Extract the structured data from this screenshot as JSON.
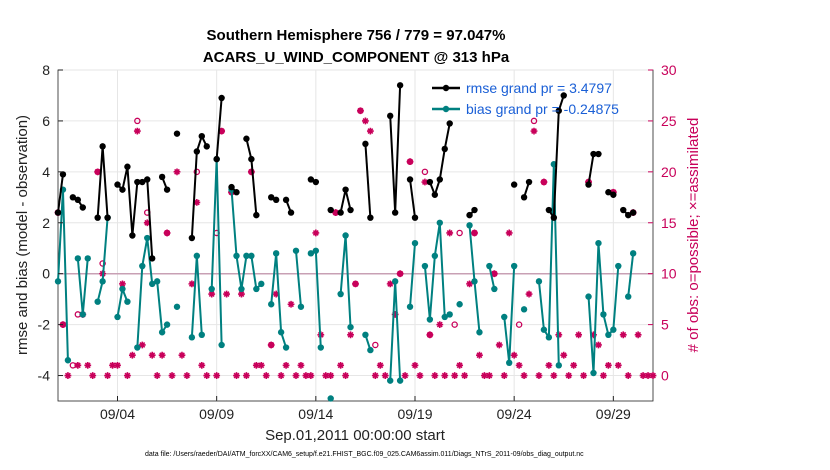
{
  "chart_data": {
    "type": "line",
    "title": "Southern Hemisphere 756 / 779 = 97.047%",
    "subtitle": "ACARS_U_WIND_COMPONENT @ 313 hPa",
    "xlabel": "Sep.01,2011 00:00:00 start",
    "ylabel": "rmse and bias (model - observation)",
    "y2label": "# of obs: o=possible; ×=assimilated",
    "footer": "data file: /Users/raeder/DAI/ATM_forcXX/CAM6_setup/f.e21.FHIST_BGC.f09_025.CAM6assim.011/Diags_NTrS_2011-09/obs_diag_output.nc",
    "xlim": [
      1.0,
      31.0
    ],
    "ylim": [
      -5,
      8
    ],
    "y2lim": [
      -2.5,
      30
    ],
    "x_ticks": [
      4,
      9,
      14,
      19,
      24,
      29
    ],
    "x_tick_labels": [
      "09/04",
      "09/09",
      "09/14",
      "09/19",
      "09/24",
      "09/29"
    ],
    "y_ticks": [
      -4,
      -2,
      0,
      2,
      4,
      6,
      8
    ],
    "y_tick_labels": [
      "-4",
      "-2",
      "0",
      "2",
      "4",
      "6",
      "8"
    ],
    "y2_ticks": [
      0,
      5,
      10,
      15,
      20,
      25,
      30
    ],
    "y2_tick_labels": [
      "0",
      "5",
      "10",
      "15",
      "20",
      "25",
      "30"
    ],
    "colors": {
      "rmse": "#000000",
      "bias": "#008080",
      "counts": "#c8005a",
      "zero_line": "#c8a0b4"
    },
    "legend": [
      {
        "name": "rmse",
        "label": "rmse grand pr = 3.4797"
      },
      {
        "name": "bias",
        "label": "bias grand pr = -0.24875"
      }
    ],
    "rmse": [
      [
        1.0,
        2.4
      ],
      [
        1.25,
        3.9
      ],
      [
        1.5,
        null
      ],
      [
        1.75,
        3.0
      ],
      [
        2.0,
        2.9
      ],
      [
        2.25,
        2.6
      ],
      [
        2.5,
        null
      ],
      [
        2.75,
        null
      ],
      [
        3.0,
        2.2
      ],
      [
        3.25,
        5.0
      ],
      [
        3.5,
        2.2
      ],
      [
        3.75,
        null
      ],
      [
        4.0,
        3.5
      ],
      [
        4.25,
        3.3
      ],
      [
        4.5,
        4.2
      ],
      [
        4.75,
        1.5
      ],
      [
        5.0,
        3.6
      ],
      [
        5.25,
        3.6
      ],
      [
        5.5,
        3.7
      ],
      [
        5.75,
        0.6
      ],
      [
        6.0,
        null
      ],
      [
        6.25,
        3.8
      ],
      [
        6.5,
        3.3
      ],
      [
        6.75,
        null
      ],
      [
        7.0,
        5.5
      ],
      [
        7.25,
        null
      ],
      [
        7.5,
        null
      ],
      [
        7.75,
        1.4
      ],
      [
        8.0,
        4.8
      ],
      [
        8.25,
        5.4
      ],
      [
        8.5,
        5.0
      ],
      [
        8.75,
        null
      ],
      [
        9.0,
        4.5
      ],
      [
        9.25,
        6.9
      ],
      [
        9.5,
        null
      ],
      [
        9.75,
        3.4
      ],
      [
        10.0,
        3.2
      ],
      [
        10.25,
        null
      ],
      [
        10.5,
        5.3
      ],
      [
        10.75,
        4.5
      ],
      [
        11.0,
        2.3
      ],
      [
        11.25,
        null
      ],
      [
        11.5,
        null
      ],
      [
        11.75,
        3.0
      ],
      [
        12.0,
        2.9
      ],
      [
        12.25,
        null
      ],
      [
        12.5,
        2.9
      ],
      [
        12.75,
        2.4
      ],
      [
        13.0,
        null
      ],
      [
        13.25,
        null
      ],
      [
        13.5,
        null
      ],
      [
        13.75,
        3.7
      ],
      [
        14.0,
        3.6
      ],
      [
        14.25,
        null
      ],
      [
        14.5,
        null
      ],
      [
        14.75,
        2.5
      ],
      [
        15.0,
        null
      ],
      [
        15.25,
        2.4
      ],
      [
        15.5,
        3.3
      ],
      [
        15.75,
        2.5
      ],
      [
        16.0,
        null
      ],
      [
        16.25,
        null
      ],
      [
        16.5,
        5.1
      ],
      [
        16.75,
        2.2
      ],
      [
        17.0,
        null
      ],
      [
        17.25,
        null
      ],
      [
        17.5,
        null
      ],
      [
        17.75,
        6.2
      ],
      [
        18.0,
        2.4
      ],
      [
        18.25,
        7.4
      ],
      [
        18.5,
        null
      ],
      [
        18.75,
        3.7
      ],
      [
        19.0,
        2.2
      ],
      [
        19.25,
        null
      ],
      [
        19.5,
        null
      ],
      [
        19.75,
        3.6
      ],
      [
        20.0,
        3.1
      ],
      [
        20.25,
        3.7
      ],
      [
        20.5,
        4.9
      ],
      [
        20.75,
        5.9
      ],
      [
        21.0,
        null
      ],
      [
        21.25,
        null
      ],
      [
        21.5,
        null
      ],
      [
        21.75,
        2.3
      ],
      [
        22.0,
        2.5
      ],
      [
        22.25,
        null
      ],
      [
        22.5,
        null
      ],
      [
        22.75,
        null
      ],
      [
        23.0,
        null
      ],
      [
        23.25,
        null
      ],
      [
        23.5,
        null
      ],
      [
        23.75,
        null
      ],
      [
        24.0,
        3.5
      ],
      [
        24.25,
        null
      ],
      [
        24.5,
        3.0
      ],
      [
        24.75,
        3.6
      ],
      [
        25.0,
        null
      ],
      [
        25.25,
        null
      ],
      [
        25.5,
        null
      ],
      [
        25.75,
        2.5
      ],
      [
        26.0,
        2.2
      ],
      [
        26.25,
        6.4
      ],
      [
        26.5,
        7.0
      ],
      [
        26.75,
        null
      ],
      [
        27.0,
        null
      ],
      [
        27.25,
        null
      ],
      [
        27.5,
        null
      ],
      [
        27.75,
        3.5
      ],
      [
        28.0,
        4.7
      ],
      [
        28.25,
        4.7
      ],
      [
        28.5,
        null
      ],
      [
        28.75,
        3.2
      ],
      [
        29.0,
        3.1
      ],
      [
        29.25,
        null
      ],
      [
        29.5,
        2.5
      ],
      [
        29.75,
        2.3
      ],
      [
        30.0,
        2.4
      ],
      [
        30.25,
        null
      ],
      [
        30.5,
        null
      ],
      [
        30.75,
        null
      ],
      [
        31.0,
        null
      ]
    ],
    "bias": [
      [
        1.0,
        -0.3
      ],
      [
        1.25,
        3.3
      ],
      [
        1.5,
        -3.4
      ],
      [
        1.75,
        null
      ],
      [
        2.0,
        0.6
      ],
      [
        2.25,
        -1.6
      ],
      [
        2.5,
        0.6
      ],
      [
        2.75,
        null
      ],
      [
        3.0,
        -1.1
      ],
      [
        3.25,
        -0.3
      ],
      [
        3.5,
        2.2
      ],
      [
        3.75,
        null
      ],
      [
        4.0,
        -1.7
      ],
      [
        4.25,
        -0.6
      ],
      [
        4.5,
        -1.1
      ],
      [
        4.75,
        null
      ],
      [
        5.0,
        -2.9
      ],
      [
        5.25,
        0.3
      ],
      [
        5.5,
        1.4
      ],
      [
        5.75,
        -0.4
      ],
      [
        6.0,
        -0.3
      ],
      [
        6.25,
        -2.3
      ],
      [
        6.5,
        -2.0
      ],
      [
        6.75,
        null
      ],
      [
        7.0,
        -1.3
      ],
      [
        7.25,
        null
      ],
      [
        7.5,
        null
      ],
      [
        7.75,
        -2.5
      ],
      [
        8.0,
        0.7
      ],
      [
        8.25,
        -2.4
      ],
      [
        8.5,
        null
      ],
      [
        8.75,
        -0.6
      ],
      [
        9.0,
        4.5
      ],
      [
        9.25,
        -2.8
      ],
      [
        9.5,
        null
      ],
      [
        9.75,
        3.3
      ],
      [
        10.0,
        0.7
      ],
      [
        10.25,
        -0.6
      ],
      [
        10.5,
        0.7
      ],
      [
        10.75,
        0.7
      ],
      [
        11.0,
        -0.6
      ],
      [
        11.25,
        -0.4
      ],
      [
        11.5,
        null
      ],
      [
        11.75,
        -1.2
      ],
      [
        12.0,
        0.8
      ],
      [
        12.25,
        -2.3
      ],
      [
        12.5,
        -2.9
      ],
      [
        12.75,
        null
      ],
      [
        13.0,
        0.9
      ],
      [
        13.25,
        -1.3
      ],
      [
        13.5,
        null
      ],
      [
        13.75,
        0.8
      ],
      [
        14.0,
        0.9
      ],
      [
        14.25,
        -2.9
      ],
      [
        14.5,
        null
      ],
      [
        14.75,
        -4.9
      ],
      [
        15.0,
        null
      ],
      [
        15.25,
        -0.8
      ],
      [
        15.5,
        1.5
      ],
      [
        15.75,
        -2.1
      ],
      [
        16.0,
        null
      ],
      [
        16.25,
        null
      ],
      [
        16.5,
        -2.4
      ],
      [
        16.75,
        -3.0
      ],
      [
        17.0,
        null
      ],
      [
        17.25,
        null
      ],
      [
        17.5,
        null
      ],
      [
        17.75,
        -4.2
      ],
      [
        18.0,
        -0.3
      ],
      [
        18.25,
        -4.2
      ],
      [
        18.5,
        null
      ],
      [
        18.75,
        -1.3
      ],
      [
        19.0,
        1.2
      ],
      [
        19.25,
        null
      ],
      [
        19.5,
        0.3
      ],
      [
        19.75,
        -1.8
      ],
      [
        20.0,
        0.7
      ],
      [
        20.25,
        2.0
      ],
      [
        20.5,
        -1.7
      ],
      [
        20.75,
        -1.6
      ],
      [
        21.0,
        null
      ],
      [
        21.25,
        -1.2
      ],
      [
        21.5,
        null
      ],
      [
        21.75,
        1.9
      ],
      [
        22.0,
        -0.3
      ],
      [
        22.25,
        -2.3
      ],
      [
        22.5,
        null
      ],
      [
        22.75,
        0.3
      ],
      [
        23.0,
        -0.6
      ],
      [
        23.25,
        null
      ],
      [
        23.5,
        -1.7
      ],
      [
        23.75,
        -3.5
      ],
      [
        24.0,
        0.3
      ],
      [
        24.25,
        null
      ],
      [
        24.5,
        -1.4
      ],
      [
        24.75,
        null
      ],
      [
        25.0,
        null
      ],
      [
        25.25,
        -0.3
      ],
      [
        25.5,
        -2.2
      ],
      [
        25.75,
        -2.5
      ],
      [
        26.0,
        4.3
      ],
      [
        26.25,
        -3.6
      ],
      [
        26.5,
        null
      ],
      [
        26.75,
        null
      ],
      [
        27.0,
        null
      ],
      [
        27.25,
        null
      ],
      [
        27.5,
        null
      ],
      [
        27.75,
        -0.9
      ],
      [
        28.0,
        -3.9
      ],
      [
        28.25,
        1.2
      ],
      [
        28.5,
        -1.6
      ],
      [
        28.75,
        -2.4
      ],
      [
        29.0,
        -2.2
      ],
      [
        29.25,
        0.3
      ],
      [
        29.5,
        null
      ],
      [
        29.75,
        -0.9
      ],
      [
        30.0,
        0.8
      ],
      [
        30.25,
        null
      ],
      [
        30.5,
        null
      ],
      [
        30.75,
        null
      ],
      [
        31.0,
        null
      ]
    ],
    "assimilated": [
      [
        1.0,
        16
      ],
      [
        1.25,
        5
      ],
      [
        1.5,
        0
      ],
      [
        1.75,
        null
      ],
      [
        2.0,
        1
      ],
      [
        2.25,
        6
      ],
      [
        2.5,
        1
      ],
      [
        2.75,
        0
      ],
      [
        3.0,
        20
      ],
      [
        3.25,
        10
      ],
      [
        3.5,
        0
      ],
      [
        3.75,
        1
      ],
      [
        4.0,
        1
      ],
      [
        4.25,
        9
      ],
      [
        4.5,
        0
      ],
      [
        4.75,
        2
      ],
      [
        5.0,
        24
      ],
      [
        5.25,
        3
      ],
      [
        5.5,
        15
      ],
      [
        5.75,
        2
      ],
      [
        6.0,
        0
      ],
      [
        6.25,
        2
      ],
      [
        6.5,
        14
      ],
      [
        6.75,
        0
      ],
      [
        7.0,
        20
      ],
      [
        7.25,
        2
      ],
      [
        7.5,
        0
      ],
      [
        7.75,
        9
      ],
      [
        8.0,
        17
      ],
      [
        8.25,
        1
      ],
      [
        8.5,
        0
      ],
      [
        8.75,
        8
      ],
      [
        9.0,
        0
      ],
      [
        9.25,
        24
      ],
      [
        9.5,
        8
      ],
      [
        9.75,
        18
      ],
      [
        10.0,
        0
      ],
      [
        10.25,
        8
      ],
      [
        10.5,
        0
      ],
      [
        10.75,
        20
      ],
      [
        11.0,
        1
      ],
      [
        11.25,
        1
      ],
      [
        11.5,
        0
      ],
      [
        11.75,
        3
      ],
      [
        12.0,
        8
      ],
      [
        12.25,
        0
      ],
      [
        12.5,
        1
      ],
      [
        12.75,
        7
      ],
      [
        13.0,
        0
      ],
      [
        13.25,
        1
      ],
      [
        13.5,
        0
      ],
      [
        13.75,
        0
      ],
      [
        14.0,
        14
      ],
      [
        14.25,
        4
      ],
      [
        14.5,
        0
      ],
      [
        14.75,
        0
      ],
      [
        15.0,
        16
      ],
      [
        15.25,
        1
      ],
      [
        15.5,
        0
      ],
      [
        15.75,
        4
      ],
      [
        16.0,
        9
      ],
      [
        16.25,
        26
      ],
      [
        16.5,
        25
      ],
      [
        16.75,
        24
      ],
      [
        17.0,
        0
      ],
      [
        17.25,
        1
      ],
      [
        17.5,
        0
      ],
      [
        17.75,
        9
      ],
      [
        18.0,
        6
      ],
      [
        18.25,
        10
      ],
      [
        18.5,
        0
      ],
      [
        18.75,
        21
      ],
      [
        19.0,
        1
      ],
      [
        19.25,
        0
      ],
      [
        19.5,
        19
      ],
      [
        19.75,
        4
      ],
      [
        20.0,
        0
      ],
      [
        20.25,
        5
      ],
      [
        20.5,
        0
      ],
      [
        20.75,
        14
      ],
      [
        21.0,
        0
      ],
      [
        21.25,
        1
      ],
      [
        21.5,
        0
      ],
      [
        21.75,
        9
      ],
      [
        22.0,
        14
      ],
      [
        22.25,
        2
      ],
      [
        22.5,
        0
      ],
      [
        22.75,
        0
      ],
      [
        23.0,
        10
      ],
      [
        23.25,
        3
      ],
      [
        23.5,
        0
      ],
      [
        23.75,
        14
      ],
      [
        24.0,
        2
      ],
      [
        24.25,
        1
      ],
      [
        24.5,
        0
      ],
      [
        24.75,
        8
      ],
      [
        25.0,
        24
      ],
      [
        25.25,
        0
      ],
      [
        25.5,
        19
      ],
      [
        25.75,
        1
      ],
      [
        26.0,
        0
      ],
      [
        26.25,
        4
      ],
      [
        26.5,
        2
      ],
      [
        26.75,
        0
      ],
      [
        27.0,
        1
      ],
      [
        27.25,
        4
      ],
      [
        27.5,
        0
      ],
      [
        27.75,
        19
      ],
      [
        28.0,
        4
      ],
      [
        28.25,
        3
      ],
      [
        28.5,
        0
      ],
      [
        28.75,
        1
      ],
      [
        29.0,
        18
      ],
      [
        29.25,
        1
      ],
      [
        29.5,
        4
      ],
      [
        29.75,
        0
      ],
      [
        30.0,
        16
      ],
      [
        30.25,
        4
      ],
      [
        30.5,
        0
      ],
      [
        30.75,
        0
      ],
      [
        31.0,
        0
      ]
    ],
    "possible": [
      [
        1.0,
        16
      ],
      [
        1.25,
        5
      ],
      [
        1.75,
        1
      ],
      [
        2.0,
        6
      ],
      [
        3.0,
        20
      ],
      [
        3.25,
        11
      ],
      [
        5.0,
        25
      ],
      [
        5.5,
        16
      ],
      [
        6.5,
        14
      ],
      [
        8.0,
        20
      ],
      [
        9.0,
        14
      ],
      [
        9.25,
        24
      ],
      [
        9.75,
        18
      ],
      [
        10.75,
        20
      ],
      [
        11.75,
        3
      ],
      [
        15.0,
        16
      ],
      [
        16.0,
        9
      ],
      [
        16.25,
        26
      ],
      [
        17.0,
        3
      ],
      [
        18.25,
        10
      ],
      [
        18.75,
        21
      ],
      [
        19.5,
        20
      ],
      [
        19.75,
        4
      ],
      [
        21.0,
        5
      ],
      [
        21.25,
        14
      ],
      [
        22.0,
        14
      ],
      [
        23.0,
        10
      ],
      [
        24.25,
        5
      ],
      [
        25.0,
        25
      ],
      [
        25.5,
        19
      ],
      [
        27.75,
        19
      ],
      [
        29.0,
        18
      ],
      [
        30.0,
        16
      ]
    ]
  }
}
